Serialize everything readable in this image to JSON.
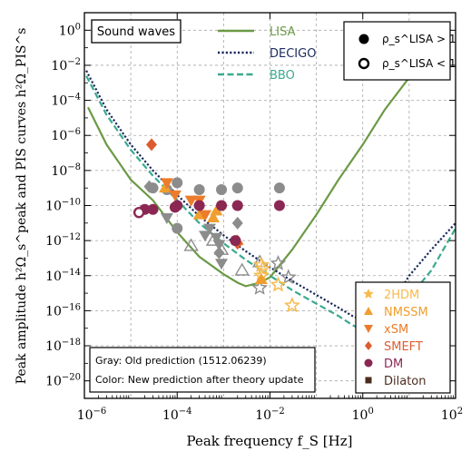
{
  "chart_data": {
    "type": "scatter",
    "xlabel": "Peak frequency f_S [Hz]",
    "ylabel": "Peak amplitude h²Ω_s^peak and PIS curves h²Ω_PIS^s",
    "xlim": [
      1e-06,
      100
    ],
    "ylim": [
      1e-21,
      10
    ],
    "xscale": "log",
    "yscale": "log",
    "grid": true,
    "x_ticks": [
      1e-06,
      0.0001,
      0.01,
      1,
      100
    ],
    "x_tick_labels": [
      "10^-6",
      "10^-4",
      "10^-2",
      "10^0",
      "10^2"
    ],
    "y_ticks": [
      1,
      0.01,
      0.0001,
      1e-06,
      1e-08,
      1e-10,
      1e-12,
      1e-14,
      1e-16,
      1e-18,
      1e-20
    ],
    "y_tick_labels": [
      "10^0",
      "10^-2",
      "10^-4",
      "10^-6",
      "10^-8",
      "10^-10",
      "10^-12",
      "10^-14",
      "10^-16",
      "10^-18",
      "10^-20"
    ],
    "title_box": "Sound waves",
    "curves": [
      {
        "name": "LISA",
        "color": "#6b9a45",
        "style": "solid",
        "points": [
          [
            1.2e-06,
            4e-05
          ],
          [
            3e-06,
            3e-07
          ],
          [
            1e-05,
            3e-09
          ],
          [
            3e-05,
            2e-10
          ],
          [
            0.0001,
            3e-12
          ],
          [
            0.0003,
            1.2e-13
          ],
          [
            0.001,
            1.2e-14
          ],
          [
            0.002,
            4e-15
          ],
          [
            0.003,
            2.5e-15
          ],
          [
            0.006,
            4e-15
          ],
          [
            0.01,
            8e-15
          ],
          [
            0.03,
            3e-13
          ],
          [
            0.1,
            3e-11
          ],
          [
            0.3,
            3e-09
          ],
          [
            1,
            3e-07
          ],
          [
            3,
            3e-05
          ],
          [
            10,
            0.002
          ],
          [
            30,
            0.05
          ],
          [
            65,
            0.6
          ]
        ]
      },
      {
        "name": "DECIGO",
        "color": "#1a2a5e",
        "style": "dotted",
        "points": [
          [
            1.1e-06,
            0.005
          ],
          [
            3e-06,
            3e-05
          ],
          [
            1e-05,
            3e-07
          ],
          [
            3e-05,
            1e-08
          ],
          [
            0.0001,
            4e-10
          ],
          [
            0.0003,
            2.5e-11
          ],
          [
            0.001,
            2e-12
          ],
          [
            0.003,
            2.5e-13
          ],
          [
            0.01,
            3e-14
          ],
          [
            0.03,
            5e-15
          ],
          [
            0.1,
            8e-16
          ],
          [
            0.3,
            1.5e-16
          ],
          [
            0.6,
            5e-17
          ],
          [
            1,
            3e-17
          ],
          [
            1.5,
            3e-17
          ],
          [
            2,
            4e-17
          ],
          [
            3,
            1e-16
          ],
          [
            5,
            5e-16
          ],
          [
            10,
            1e-14
          ],
          [
            30,
            3e-13
          ],
          [
            100,
            1e-11
          ]
        ]
      },
      {
        "name": "BBO",
        "color": "#3aaa8f",
        "style": "dashed",
        "points": [
          [
            1.1e-06,
            0.0025
          ],
          [
            3e-06,
            1.5e-05
          ],
          [
            1e-05,
            1.5e-07
          ],
          [
            3e-05,
            5e-09
          ],
          [
            0.0001,
            2e-10
          ],
          [
            0.0003,
            1e-11
          ],
          [
            0.001,
            7e-13
          ],
          [
            0.003,
            8e-14
          ],
          [
            0.01,
            1e-14
          ],
          [
            0.03,
            1.5e-15
          ],
          [
            0.1,
            2.5e-16
          ],
          [
            0.3,
            5e-17
          ],
          [
            0.6,
            1.5e-17
          ],
          [
            1,
            8e-18
          ],
          [
            2,
            5e-18
          ],
          [
            3,
            6e-18
          ],
          [
            5,
            3e-17
          ],
          [
            10,
            6e-16
          ],
          [
            30,
            2e-14
          ],
          [
            100,
            5e-12
          ]
        ]
      }
    ],
    "series": [
      {
        "name": "2HDM",
        "marker": "star",
        "color": "#f7ba4a",
        "points": [
          [
            0.0065,
            4e-14
          ],
          [
            0.007,
            2.5e-14
          ],
          [
            0.0065,
            1e-14
          ],
          [
            0.015,
            3e-15
          ],
          [
            0.03,
            2e-16
          ]
        ],
        "gray_points": [
          [
            0.0065,
            4e-14
          ],
          [
            0.007,
            2.5e-14
          ],
          [
            0.015,
            5e-14
          ],
          [
            0.025,
            8e-15
          ],
          [
            0.006,
            2e-15
          ]
        ]
      },
      {
        "name": "NMSSM",
        "marker": "triangle",
        "color": "#f09e2d",
        "points": [
          [
            5.5e-05,
            1e-09
          ],
          [
            0.0003,
            3e-11
          ],
          [
            0.0006,
            2e-11
          ],
          [
            0.0007,
            5e-11
          ],
          [
            0.002,
            1e-12
          ],
          [
            0.0065,
            6e-15
          ]
        ],
        "gray_points": [
          [
            0.0002,
            5e-13
          ],
          [
            0.0006,
            1e-12
          ],
          [
            0.0009,
            3e-13
          ],
          [
            0.0025,
            2e-14
          ],
          [
            0.006,
            6e-14
          ]
        ]
      },
      {
        "name": "xSM",
        "marker": "triangle-down",
        "color": "#ec7c2a",
        "points": [
          [
            6e-05,
            2e-09
          ],
          [
            9e-05,
            4e-10
          ],
          [
            0.0002,
            2e-10
          ],
          [
            0.0003,
            2e-10
          ],
          [
            0.0004,
            3e-11
          ]
        ],
        "gray_points": [
          [
            6e-05,
            2e-11
          ],
          [
            0.0004,
            2e-12
          ],
          [
            0.0005,
            5e-12
          ],
          [
            0.0007,
            1.5e-12
          ],
          [
            0.0008,
            6e-13
          ],
          [
            0.0009,
            5e-14
          ]
        ]
      },
      {
        "name": "SMEFT",
        "marker": "diamond",
        "color": "#dd5c2f",
        "points": [
          [
            2.8e-05,
            3e-07
          ],
          [
            0.002,
            7e-13
          ]
        ],
        "gray_points": [
          [
            2.5e-05,
            1.2e-09
          ],
          [
            0.002,
            1e-11
          ],
          [
            0.0008,
            2e-13
          ]
        ]
      },
      {
        "name": "DM",
        "marker": "circle",
        "color": "#8b2753",
        "points": [
          [
            2e-05,
            6e-11
          ],
          [
            3e-05,
            6e-11
          ],
          [
            9e-05,
            8e-11
          ],
          [
            0.0001,
            1e-10
          ],
          [
            0.0003,
            1e-10
          ],
          [
            0.0009,
            1e-10
          ],
          [
            0.002,
            1e-10
          ],
          [
            0.0018,
            1e-12
          ],
          [
            0.016,
            1e-10
          ]
        ],
        "gray_points": [
          [
            3e-05,
            1e-09
          ],
          [
            6e-05,
            8e-10
          ],
          [
            0.0001,
            2e-09
          ],
          [
            0.0001,
            5e-12
          ],
          [
            0.0003,
            8e-10
          ],
          [
            0.0009,
            8e-10
          ],
          [
            0.002,
            1e-09
          ],
          [
            0.016,
            1e-09
          ]
        ]
      },
      {
        "name": "Dilaton",
        "marker": "square",
        "color": "#4a2c1e",
        "points": [],
        "gray_points": []
      }
    ],
    "open_point": {
      "label": "ρ_s^LISA < 1",
      "x": 1.5e-05,
      "y": 4e-11,
      "color": "#8b2753"
    },
    "snr_legend": [
      {
        "label": "ρ_s^LISA > 1",
        "filled": true
      },
      {
        "label": "ρ_s^LISA < 1",
        "filled": false
      }
    ],
    "colors": {
      "gray": "#8c8c8c",
      "grid": "#a6a6a6"
    },
    "note": {
      "gray": "Gray: Old prediction (1512.06239)",
      "color": "Color: New prediction after theory update"
    }
  }
}
